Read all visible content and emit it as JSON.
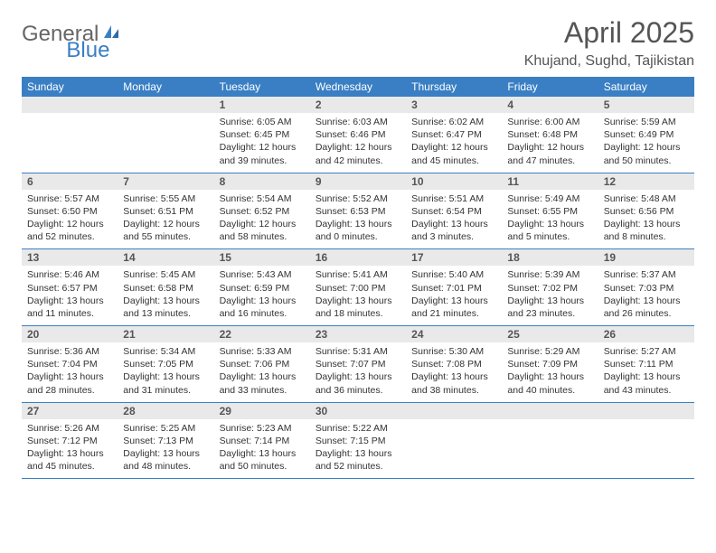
{
  "brand": {
    "word1": "General",
    "word2": "Blue"
  },
  "title": "April 2025",
  "location": "Khujand, Sughd, Tajikistan",
  "colors": {
    "accent": "#3a7fc4",
    "day_bar_bg": "#e9e9e9",
    "text": "#333333",
    "muted": "#555555",
    "bg": "#ffffff"
  },
  "typography": {
    "title_fontsize": 32,
    "location_fontsize": 16,
    "header_fontsize": 12,
    "body_fontsize": 10.5
  },
  "day_names": [
    "Sunday",
    "Monday",
    "Tuesday",
    "Wednesday",
    "Thursday",
    "Friday",
    "Saturday"
  ],
  "weeks": [
    [
      null,
      null,
      {
        "n": "1",
        "sr": "Sunrise: 6:05 AM",
        "ss": "Sunset: 6:45 PM",
        "d1": "Daylight: 12 hours",
        "d2": "and 39 minutes."
      },
      {
        "n": "2",
        "sr": "Sunrise: 6:03 AM",
        "ss": "Sunset: 6:46 PM",
        "d1": "Daylight: 12 hours",
        "d2": "and 42 minutes."
      },
      {
        "n": "3",
        "sr": "Sunrise: 6:02 AM",
        "ss": "Sunset: 6:47 PM",
        "d1": "Daylight: 12 hours",
        "d2": "and 45 minutes."
      },
      {
        "n": "4",
        "sr": "Sunrise: 6:00 AM",
        "ss": "Sunset: 6:48 PM",
        "d1": "Daylight: 12 hours",
        "d2": "and 47 minutes."
      },
      {
        "n": "5",
        "sr": "Sunrise: 5:59 AM",
        "ss": "Sunset: 6:49 PM",
        "d1": "Daylight: 12 hours",
        "d2": "and 50 minutes."
      }
    ],
    [
      {
        "n": "6",
        "sr": "Sunrise: 5:57 AM",
        "ss": "Sunset: 6:50 PM",
        "d1": "Daylight: 12 hours",
        "d2": "and 52 minutes."
      },
      {
        "n": "7",
        "sr": "Sunrise: 5:55 AM",
        "ss": "Sunset: 6:51 PM",
        "d1": "Daylight: 12 hours",
        "d2": "and 55 minutes."
      },
      {
        "n": "8",
        "sr": "Sunrise: 5:54 AM",
        "ss": "Sunset: 6:52 PM",
        "d1": "Daylight: 12 hours",
        "d2": "and 58 minutes."
      },
      {
        "n": "9",
        "sr": "Sunrise: 5:52 AM",
        "ss": "Sunset: 6:53 PM",
        "d1": "Daylight: 13 hours",
        "d2": "and 0 minutes."
      },
      {
        "n": "10",
        "sr": "Sunrise: 5:51 AM",
        "ss": "Sunset: 6:54 PM",
        "d1": "Daylight: 13 hours",
        "d2": "and 3 minutes."
      },
      {
        "n": "11",
        "sr": "Sunrise: 5:49 AM",
        "ss": "Sunset: 6:55 PM",
        "d1": "Daylight: 13 hours",
        "d2": "and 5 minutes."
      },
      {
        "n": "12",
        "sr": "Sunrise: 5:48 AM",
        "ss": "Sunset: 6:56 PM",
        "d1": "Daylight: 13 hours",
        "d2": "and 8 minutes."
      }
    ],
    [
      {
        "n": "13",
        "sr": "Sunrise: 5:46 AM",
        "ss": "Sunset: 6:57 PM",
        "d1": "Daylight: 13 hours",
        "d2": "and 11 minutes."
      },
      {
        "n": "14",
        "sr": "Sunrise: 5:45 AM",
        "ss": "Sunset: 6:58 PM",
        "d1": "Daylight: 13 hours",
        "d2": "and 13 minutes."
      },
      {
        "n": "15",
        "sr": "Sunrise: 5:43 AM",
        "ss": "Sunset: 6:59 PM",
        "d1": "Daylight: 13 hours",
        "d2": "and 16 minutes."
      },
      {
        "n": "16",
        "sr": "Sunrise: 5:41 AM",
        "ss": "Sunset: 7:00 PM",
        "d1": "Daylight: 13 hours",
        "d2": "and 18 minutes."
      },
      {
        "n": "17",
        "sr": "Sunrise: 5:40 AM",
        "ss": "Sunset: 7:01 PM",
        "d1": "Daylight: 13 hours",
        "d2": "and 21 minutes."
      },
      {
        "n": "18",
        "sr": "Sunrise: 5:39 AM",
        "ss": "Sunset: 7:02 PM",
        "d1": "Daylight: 13 hours",
        "d2": "and 23 minutes."
      },
      {
        "n": "19",
        "sr": "Sunrise: 5:37 AM",
        "ss": "Sunset: 7:03 PM",
        "d1": "Daylight: 13 hours",
        "d2": "and 26 minutes."
      }
    ],
    [
      {
        "n": "20",
        "sr": "Sunrise: 5:36 AM",
        "ss": "Sunset: 7:04 PM",
        "d1": "Daylight: 13 hours",
        "d2": "and 28 minutes."
      },
      {
        "n": "21",
        "sr": "Sunrise: 5:34 AM",
        "ss": "Sunset: 7:05 PM",
        "d1": "Daylight: 13 hours",
        "d2": "and 31 minutes."
      },
      {
        "n": "22",
        "sr": "Sunrise: 5:33 AM",
        "ss": "Sunset: 7:06 PM",
        "d1": "Daylight: 13 hours",
        "d2": "and 33 minutes."
      },
      {
        "n": "23",
        "sr": "Sunrise: 5:31 AM",
        "ss": "Sunset: 7:07 PM",
        "d1": "Daylight: 13 hours",
        "d2": "and 36 minutes."
      },
      {
        "n": "24",
        "sr": "Sunrise: 5:30 AM",
        "ss": "Sunset: 7:08 PM",
        "d1": "Daylight: 13 hours",
        "d2": "and 38 minutes."
      },
      {
        "n": "25",
        "sr": "Sunrise: 5:29 AM",
        "ss": "Sunset: 7:09 PM",
        "d1": "Daylight: 13 hours",
        "d2": "and 40 minutes."
      },
      {
        "n": "26",
        "sr": "Sunrise: 5:27 AM",
        "ss": "Sunset: 7:11 PM",
        "d1": "Daylight: 13 hours",
        "d2": "and 43 minutes."
      }
    ],
    [
      {
        "n": "27",
        "sr": "Sunrise: 5:26 AM",
        "ss": "Sunset: 7:12 PM",
        "d1": "Daylight: 13 hours",
        "d2": "and 45 minutes."
      },
      {
        "n": "28",
        "sr": "Sunrise: 5:25 AM",
        "ss": "Sunset: 7:13 PM",
        "d1": "Daylight: 13 hours",
        "d2": "and 48 minutes."
      },
      {
        "n": "29",
        "sr": "Sunrise: 5:23 AM",
        "ss": "Sunset: 7:14 PM",
        "d1": "Daylight: 13 hours",
        "d2": "and 50 minutes."
      },
      {
        "n": "30",
        "sr": "Sunrise: 5:22 AM",
        "ss": "Sunset: 7:15 PM",
        "d1": "Daylight: 13 hours",
        "d2": "and 52 minutes."
      },
      null,
      null,
      null
    ]
  ]
}
